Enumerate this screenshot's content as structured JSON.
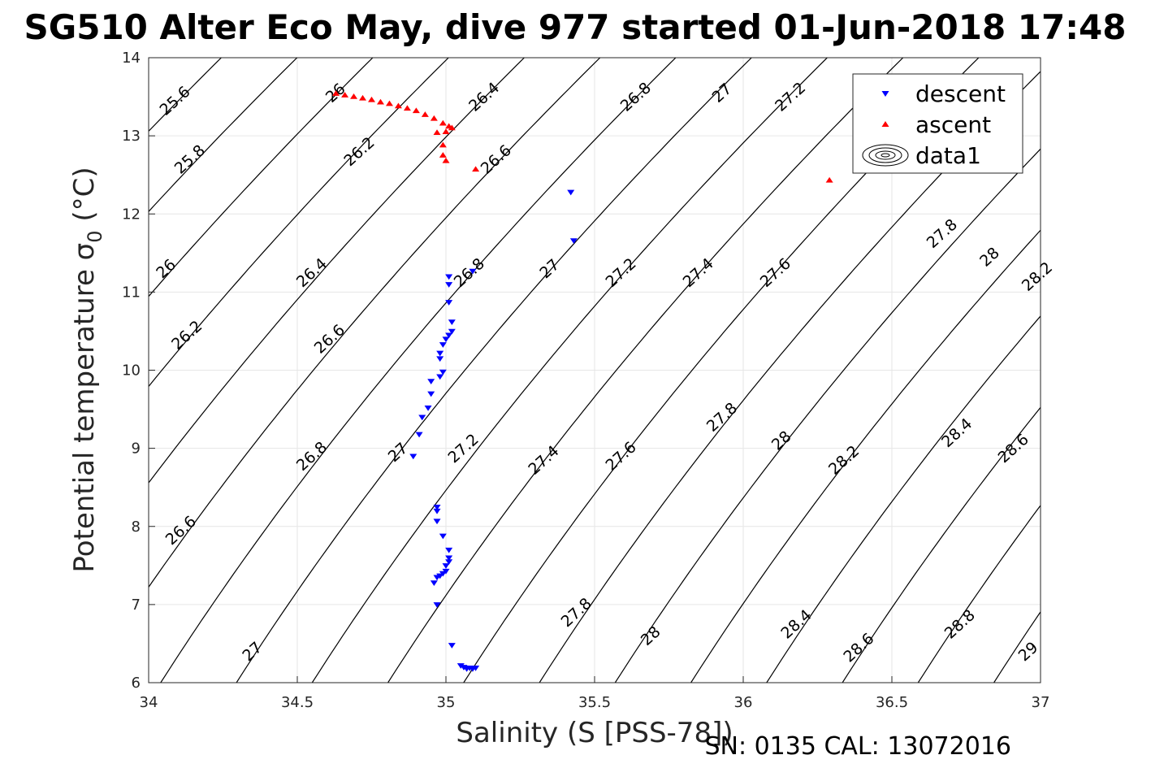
{
  "chart_data": {
    "type": "scatter",
    "title": "SG510 Alter Eco May, dive 977 started 01-Jun-2018 17:48",
    "xlabel": "Salinity (S [PSS-78])",
    "ylabel": "Potential temperature σ₀ (°C)",
    "ylabel_main": "Potential temperature ",
    "ylabel_sym": "σ",
    "ylabel_sub": "0",
    "ylabel_unit": " (°C)",
    "xlim": [
      34,
      37
    ],
    "ylim": [
      6,
      14
    ],
    "xticks": [
      "34",
      "34.5",
      "35",
      "35.5",
      "36",
      "36.5",
      "37"
    ],
    "yticks": [
      "6",
      "7",
      "8",
      "9",
      "10",
      "11",
      "12",
      "13",
      "14"
    ],
    "grid": true,
    "legend_position": "top-right",
    "footer": "SN: 0135  CAL: 13072016",
    "contours": {
      "levels": [
        25.6,
        25.8,
        26.0,
        26.2,
        26.4,
        26.6,
        26.8,
        27.0,
        27.2,
        27.4,
        27.6,
        27.8,
        28.0,
        28.2,
        28.4,
        28.6,
        28.8,
        29.0
      ],
      "labels": [
        {
          "text": "25.6",
          "x": 34.1,
          "y": 13.4
        },
        {
          "text": "25.8",
          "x": 34.15,
          "y": 12.65
        },
        {
          "text": "26",
          "x": 34.07,
          "y": 11.25
        },
        {
          "text": "26.2",
          "x": 34.14,
          "y": 10.4
        },
        {
          "text": "26.6",
          "x": 34.12,
          "y": 7.9
        },
        {
          "text": "27",
          "x": 34.36,
          "y": 6.35
        },
        {
          "text": "26",
          "x": 34.64,
          "y": 13.5
        },
        {
          "text": "26.2",
          "x": 34.72,
          "y": 12.75
        },
        {
          "text": "26.4",
          "x": 34.56,
          "y": 11.2
        },
        {
          "text": "26.6",
          "x": 34.62,
          "y": 10.35
        },
        {
          "text": "26.8",
          "x": 34.56,
          "y": 8.85
        },
        {
          "text": "27",
          "x": 34.85,
          "y": 8.9
        },
        {
          "text": "26.4",
          "x": 35.14,
          "y": 13.45
        },
        {
          "text": "26.6",
          "x": 35.18,
          "y": 12.65
        },
        {
          "text": "26.8",
          "x": 35.09,
          "y": 11.2
        },
        {
          "text": "27.2",
          "x": 35.07,
          "y": 8.95
        },
        {
          "text": "26.8",
          "x": 35.65,
          "y": 13.45
        },
        {
          "text": "27",
          "x": 35.36,
          "y": 11.25
        },
        {
          "text": "27.4",
          "x": 35.34,
          "y": 8.8
        },
        {
          "text": "27.8",
          "x": 35.45,
          "y": 6.85
        },
        {
          "text": "27",
          "x": 35.94,
          "y": 13.5
        },
        {
          "text": "27.2",
          "x": 35.6,
          "y": 11.2
        },
        {
          "text": "27.6",
          "x": 35.6,
          "y": 8.85
        },
        {
          "text": "28",
          "x": 35.7,
          "y": 6.55
        },
        {
          "text": "27.2",
          "x": 36.17,
          "y": 13.45
        },
        {
          "text": "27.4",
          "x": 35.86,
          "y": 11.2
        },
        {
          "text": "27.8",
          "x": 35.94,
          "y": 9.35
        },
        {
          "text": "27.6",
          "x": 36.12,
          "y": 11.2
        },
        {
          "text": "28",
          "x": 36.14,
          "y": 9.05
        },
        {
          "text": "28.4",
          "x": 36.19,
          "y": 6.7
        },
        {
          "text": "27.8",
          "x": 36.68,
          "y": 11.7
        },
        {
          "text": "28.2",
          "x": 36.35,
          "y": 8.8
        },
        {
          "text": "28.6",
          "x": 36.4,
          "y": 6.4
        },
        {
          "text": "28",
          "x": 36.84,
          "y": 11.4
        },
        {
          "text": "28.4",
          "x": 36.73,
          "y": 9.15
        },
        {
          "text": "28.8",
          "x": 36.74,
          "y": 6.7
        },
        {
          "text": "28.2",
          "x": 37.0,
          "y": 11.15
        },
        {
          "text": "28.6",
          "x": 36.92,
          "y": 8.95
        },
        {
          "text": "29",
          "x": 36.97,
          "y": 6.35
        }
      ]
    },
    "series": [
      {
        "name": "descent",
        "color": "#0000ff",
        "marker": "triangle-down",
        "points": [
          [
            35.42,
            12.28
          ],
          [
            35.43,
            11.66
          ],
          [
            35.09,
            11.27
          ],
          [
            35.01,
            11.2
          ],
          [
            35.01,
            11.1
          ],
          [
            35.01,
            10.87
          ],
          [
            35.02,
            10.62
          ],
          [
            35.02,
            10.5
          ],
          [
            35.01,
            10.45
          ],
          [
            35.0,
            10.4
          ],
          [
            34.99,
            10.33
          ],
          [
            34.98,
            10.22
          ],
          [
            34.98,
            10.15
          ],
          [
            34.99,
            9.98
          ],
          [
            34.98,
            9.92
          ],
          [
            34.95,
            9.86
          ],
          [
            34.95,
            9.7
          ],
          [
            34.94,
            9.52
          ],
          [
            34.92,
            9.4
          ],
          [
            34.91,
            9.18
          ],
          [
            34.89,
            8.9
          ],
          [
            34.97,
            8.25
          ],
          [
            34.97,
            8.2
          ],
          [
            34.97,
            8.07
          ],
          [
            34.99,
            7.88
          ],
          [
            35.01,
            7.7
          ],
          [
            35.01,
            7.6
          ],
          [
            35.01,
            7.55
          ],
          [
            35.0,
            7.5
          ],
          [
            35.0,
            7.43
          ],
          [
            34.99,
            7.4
          ],
          [
            34.98,
            7.37
          ],
          [
            34.97,
            7.35
          ],
          [
            34.96,
            7.28
          ],
          [
            34.97,
            7.0
          ],
          [
            35.02,
            6.48
          ],
          [
            35.05,
            6.22
          ],
          [
            35.06,
            6.2
          ],
          [
            35.07,
            6.18
          ],
          [
            35.08,
            6.19
          ],
          [
            35.09,
            6.18
          ],
          [
            35.1,
            6.19
          ]
        ]
      },
      {
        "name": "ascent",
        "color": "#ff0000",
        "marker": "triangle-up",
        "points": [
          [
            34.63,
            13.54
          ],
          [
            34.66,
            13.52
          ],
          [
            34.69,
            13.5
          ],
          [
            34.72,
            13.48
          ],
          [
            34.75,
            13.46
          ],
          [
            34.78,
            13.43
          ],
          [
            34.81,
            13.41
          ],
          [
            34.84,
            13.38
          ],
          [
            34.87,
            13.35
          ],
          [
            34.9,
            13.32
          ],
          [
            34.93,
            13.27
          ],
          [
            34.96,
            13.22
          ],
          [
            34.99,
            13.16
          ],
          [
            35.01,
            13.12
          ],
          [
            35.02,
            13.1
          ],
          [
            34.97,
            13.04
          ],
          [
            35.0,
            13.05
          ],
          [
            34.99,
            12.88
          ],
          [
            34.99,
            12.75
          ],
          [
            35.0,
            12.68
          ],
          [
            35.1,
            12.57
          ],
          [
            36.29,
            12.43
          ]
        ]
      }
    ],
    "legend": [
      {
        "name": "descent",
        "marker": "triangle-down",
        "color": "#0000ff"
      },
      {
        "name": "ascent",
        "marker": "triangle-up",
        "color": "#ff0000"
      },
      {
        "name": "data1",
        "marker": "contour",
        "color": "#000000"
      }
    ]
  }
}
